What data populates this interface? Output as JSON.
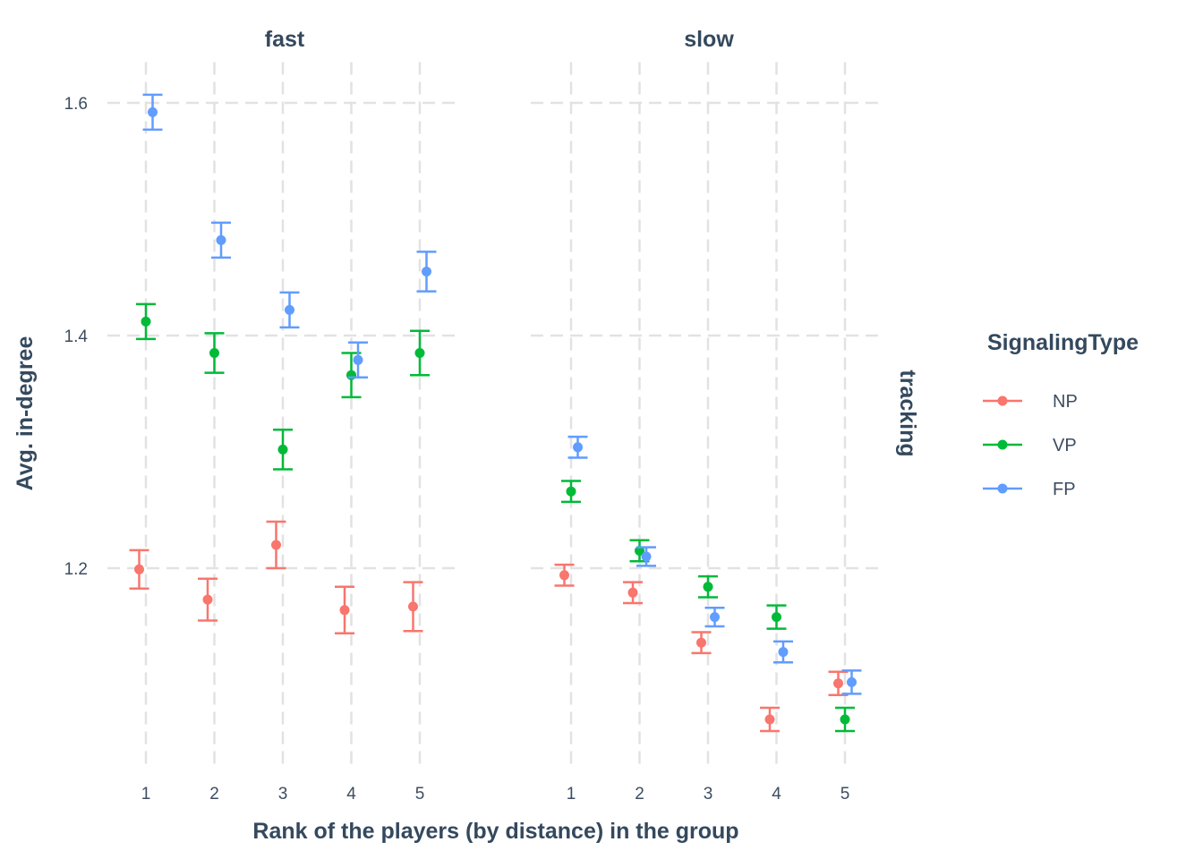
{
  "chart_data": {
    "type": "scatter",
    "subtype": "point with error bars, faceted",
    "xlabel": "Rank of the players (by distance) in the group",
    "ylabel": "Avg. in-degree",
    "facet_row_label": "tracking",
    "ylim": [
      1.031,
      1.635
    ],
    "yticks": [
      "1.2",
      "1.4",
      "1.6"
    ],
    "ytick_values": [
      1.2,
      1.4,
      1.6
    ],
    "xticks": [
      "1",
      "2",
      "3",
      "4",
      "5"
    ],
    "grid": true,
    "legend": {
      "title": "SignalingType",
      "placement": "right",
      "entries": [
        "NP",
        "VP",
        "FP"
      ]
    },
    "colors": {
      "NP": "#F8766D",
      "VP": "#00BA38",
      "FP": "#619CFF"
    },
    "panels": [
      {
        "title": "fast",
        "series": [
          {
            "name": "NP",
            "x": [
              1,
              2,
              3,
              4,
              5
            ],
            "y": [
              1.199,
              1.173,
              1.22,
              1.164,
              1.167
            ],
            "err": [
              0.0165,
              0.018,
              0.02,
              0.02,
              0.021
            ]
          },
          {
            "name": "VP",
            "x": [
              1,
              2,
              3,
              4,
              5
            ],
            "y": [
              1.412,
              1.385,
              1.302,
              1.366,
              1.385
            ],
            "err": [
              0.015,
              0.017,
              0.017,
              0.019,
              0.019
            ]
          },
          {
            "name": "FP",
            "x": [
              1,
              2,
              3,
              4,
              5
            ],
            "y": [
              1.592,
              1.482,
              1.422,
              1.379,
              1.455
            ],
            "err": [
              0.015,
              0.015,
              0.015,
              0.015,
              0.017
            ]
          }
        ]
      },
      {
        "title": "slow",
        "series": [
          {
            "name": "NP",
            "x": [
              1,
              2,
              3,
              4,
              5
            ],
            "y": [
              1.194,
              1.179,
              1.136,
              1.07,
              1.101
            ],
            "err": [
              0.009,
              0.009,
              0.009,
              0.01,
              0.01
            ]
          },
          {
            "name": "VP",
            "x": [
              1,
              2,
              3,
              4,
              5
            ],
            "y": [
              1.266,
              1.215,
              1.184,
              1.158,
              1.07
            ],
            "err": [
              0.009,
              0.009,
              0.009,
              0.01,
              0.01
            ]
          },
          {
            "name": "FP",
            "x": [
              1,
              2,
              3,
              4,
              5
            ],
            "y": [
              1.304,
              1.21,
              1.158,
              1.128,
              1.102
            ],
            "err": [
              0.009,
              0.008,
              0.008,
              0.009,
              0.01
            ]
          }
        ]
      }
    ]
  }
}
